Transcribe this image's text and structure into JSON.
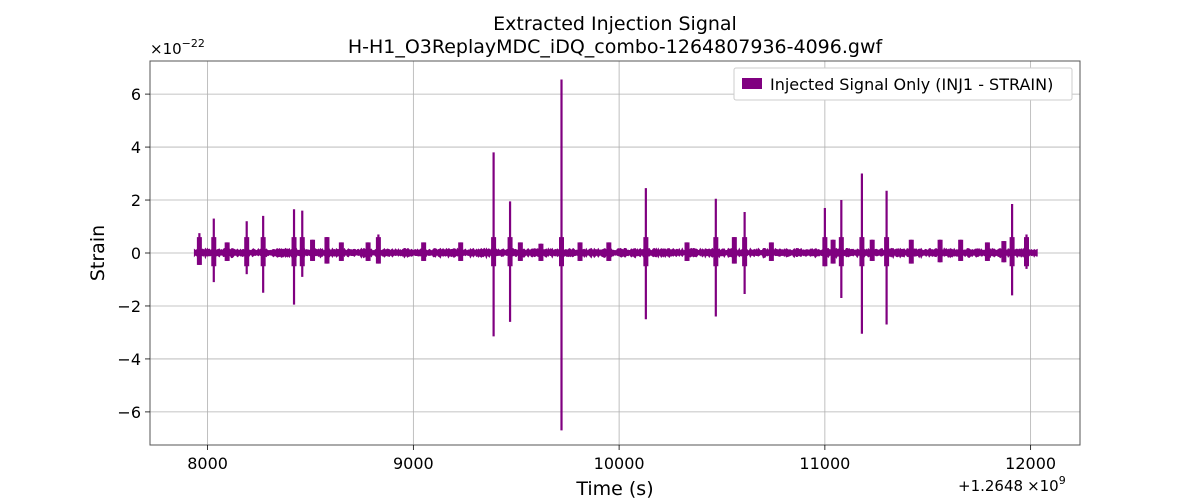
{
  "chart_data": {
    "type": "line",
    "title": "Extracted Injection Signal",
    "subtitle": "H-H1_O3ReplayMDC_iDQ_combo-1264807936-4096.gwf",
    "xlabel": "Time (s)",
    "ylabel": "Strain",
    "x_offset_label": "+1.2648",
    "x_offset_exponent_label": "×10",
    "x_offset_exponent": "9",
    "y_scale_label": "×10",
    "y_scale_exponent": "−22",
    "xlim": [
      7720,
      12240
    ],
    "ylim": [
      -7.25,
      7.25
    ],
    "x_ticks": [
      {
        "value": 8000,
        "label": "8000"
      },
      {
        "value": 9000,
        "label": "9000"
      },
      {
        "value": 10000,
        "label": "10000"
      },
      {
        "value": 11000,
        "label": "11000"
      },
      {
        "value": 12000,
        "label": "12000"
      }
    ],
    "y_ticks": [
      {
        "value": -6,
        "label": "−6"
      },
      {
        "value": -4,
        "label": "−4"
      },
      {
        "value": -2,
        "label": "−2"
      },
      {
        "value": 0,
        "label": "0"
      },
      {
        "value": 2,
        "label": "2"
      },
      {
        "value": 4,
        "label": "4"
      },
      {
        "value": 6,
        "label": "6"
      }
    ],
    "grid": true,
    "legend": {
      "placement": "top-right",
      "entries": [
        "Injected Signal Only (INJ1 - STRAIN)"
      ]
    },
    "series": [
      {
        "name": "Injected Signal Only (INJ1 - STRAIN)",
        "color": "#800080",
        "x_range": [
          7936,
          12032
        ],
        "baseline_amplitude": 0.15,
        "spikes": [
          {
            "x": 7960,
            "y_max": 0.75,
            "y_min": -0.45
          },
          {
            "x": 8030,
            "y_max": 1.3,
            "y_min": -1.1
          },
          {
            "x": 8095,
            "y_max": 0.4,
            "y_min": -0.3
          },
          {
            "x": 8190,
            "y_max": 1.2,
            "y_min": -0.8
          },
          {
            "x": 8270,
            "y_max": 1.4,
            "y_min": -1.5
          },
          {
            "x": 8420,
            "y_max": 1.65,
            "y_min": -1.95
          },
          {
            "x": 8460,
            "y_max": 1.6,
            "y_min": -0.9
          },
          {
            "x": 8510,
            "y_max": 0.5,
            "y_min": -0.3
          },
          {
            "x": 8580,
            "y_max": 0.6,
            "y_min": -0.4
          },
          {
            "x": 8650,
            "y_max": 0.4,
            "y_min": -0.3
          },
          {
            "x": 8780,
            "y_max": 0.4,
            "y_min": -0.3
          },
          {
            "x": 8830,
            "y_max": 0.7,
            "y_min": -0.4
          },
          {
            "x": 9050,
            "y_max": 0.4,
            "y_min": -0.3
          },
          {
            "x": 9230,
            "y_max": 0.4,
            "y_min": -0.3
          },
          {
            "x": 9390,
            "y_max": 3.8,
            "y_min": -3.15
          },
          {
            "x": 9470,
            "y_max": 1.95,
            "y_min": -2.6
          },
          {
            "x": 9520,
            "y_max": 0.4,
            "y_min": -0.3
          },
          {
            "x": 9620,
            "y_max": 0.35,
            "y_min": -0.3
          },
          {
            "x": 9720,
            "y_max": 6.55,
            "y_min": -6.7
          },
          {
            "x": 9810,
            "y_max": 0.4,
            "y_min": -0.3
          },
          {
            "x": 9950,
            "y_max": 0.4,
            "y_min": -0.3
          },
          {
            "x": 10130,
            "y_max": 2.45,
            "y_min": -2.5
          },
          {
            "x": 10330,
            "y_max": 0.4,
            "y_min": -0.3
          },
          {
            "x": 10470,
            "y_max": 2.05,
            "y_min": -2.4
          },
          {
            "x": 10560,
            "y_max": 0.6,
            "y_min": -0.4
          },
          {
            "x": 10610,
            "y_max": 1.55,
            "y_min": -1.55
          },
          {
            "x": 10740,
            "y_max": 0.4,
            "y_min": -0.3
          },
          {
            "x": 11000,
            "y_max": 1.7,
            "y_min": -0.5
          },
          {
            "x": 11040,
            "y_max": 0.5,
            "y_min": -0.4
          },
          {
            "x": 11080,
            "y_max": 2.0,
            "y_min": -1.7
          },
          {
            "x": 11180,
            "y_max": 3.0,
            "y_min": -3.05
          },
          {
            "x": 11230,
            "y_max": 0.5,
            "y_min": -0.3
          },
          {
            "x": 11300,
            "y_max": 2.35,
            "y_min": -2.7
          },
          {
            "x": 11420,
            "y_max": 0.5,
            "y_min": -0.4
          },
          {
            "x": 11560,
            "y_max": 0.5,
            "y_min": -0.35
          },
          {
            "x": 11660,
            "y_max": 0.5,
            "y_min": -0.3
          },
          {
            "x": 11790,
            "y_max": 0.4,
            "y_min": -0.3
          },
          {
            "x": 11870,
            "y_max": 0.45,
            "y_min": -0.35
          },
          {
            "x": 11910,
            "y_max": 1.85,
            "y_min": -1.6
          },
          {
            "x": 11980,
            "y_max": 0.7,
            "y_min": -0.6
          }
        ]
      }
    ]
  }
}
